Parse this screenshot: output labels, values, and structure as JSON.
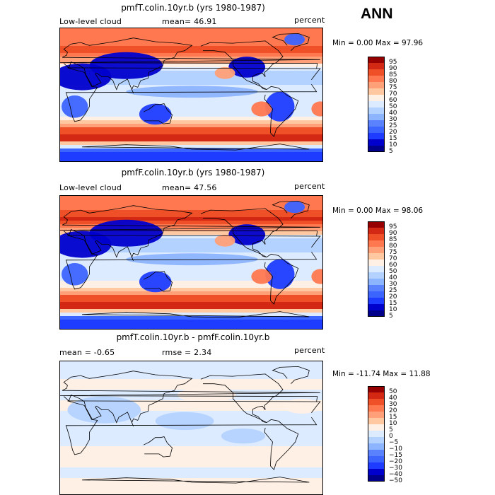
{
  "season": "ANN",
  "panels": [
    {
      "title": "pmfT.colin.10yr.b (yrs 1980-1987)",
      "left_label": "Low-level cloud",
      "stat_text": "mean=  46.91",
      "units": "percent",
      "minmax_text": "Min =   0.00 Max =  97.96",
      "colorbar_ticks": [
        "95",
        "90",
        "85",
        "80",
        "75",
        "70",
        "60",
        "50",
        "40",
        "30",
        "25",
        "20",
        "15",
        "10",
        "5"
      ]
    },
    {
      "title": "pmfF.colin.10yr.b (yrs 1980-1987)",
      "left_label": "Low-level cloud",
      "stat_text": "mean=  47.56",
      "units": "percent",
      "minmax_text": "Min =   0.00 Max =  98.06",
      "colorbar_ticks": [
        "95",
        "90",
        "85",
        "80",
        "75",
        "70",
        "60",
        "50",
        "40",
        "30",
        "25",
        "20",
        "15",
        "10",
        "5"
      ]
    },
    {
      "title": "pmfT.colin.10yr.b - pmfF.colin.10yr.b",
      "left_label": "mean =  -0.65",
      "stat_text": "rmse =   2.34",
      "units": "percent",
      "minmax_text": "Min = -11.74 Max =  11.88",
      "colorbar_ticks": [
        "50",
        "40",
        "30",
        "20",
        "15",
        "10",
        "5",
        "0",
        "−5",
        "−10",
        "−15",
        "−20",
        "−30",
        "−40",
        "−50"
      ]
    }
  ],
  "chart_data": [
    {
      "type": "heatmap",
      "title": "pmfT.colin.10yr.b (yrs 1980-1987)",
      "variable": "Low-level cloud",
      "units": "percent",
      "mean": 46.91,
      "min": 0.0,
      "max": 97.96,
      "levels": [
        5,
        10,
        15,
        20,
        25,
        30,
        40,
        50,
        60,
        70,
        75,
        80,
        85,
        90,
        95
      ],
      "zonal_profile": [
        {
          "lat": 75,
          "value": 75
        },
        {
          "lat": 60,
          "value": 85
        },
        {
          "lat": 45,
          "value": 70
        },
        {
          "lat": 30,
          "value": 35
        },
        {
          "lat": 15,
          "value": 40
        },
        {
          "lat": 0,
          "value": 45
        },
        {
          "lat": -15,
          "value": 45
        },
        {
          "lat": -30,
          "value": 50
        },
        {
          "lat": -45,
          "value": 80
        },
        {
          "lat": -60,
          "value": 90
        },
        {
          "lat": -75,
          "value": 10
        }
      ]
    },
    {
      "type": "heatmap",
      "title": "pmfF.colin.10yr.b (yrs 1980-1987)",
      "variable": "Low-level cloud",
      "units": "percent",
      "mean": 47.56,
      "min": 0.0,
      "max": 98.06,
      "levels": [
        5,
        10,
        15,
        20,
        25,
        30,
        40,
        50,
        60,
        70,
        75,
        80,
        85,
        90,
        95
      ],
      "zonal_profile": [
        {
          "lat": 75,
          "value": 78
        },
        {
          "lat": 60,
          "value": 87
        },
        {
          "lat": 45,
          "value": 72
        },
        {
          "lat": 30,
          "value": 34
        },
        {
          "lat": 15,
          "value": 40
        },
        {
          "lat": 0,
          "value": 46
        },
        {
          "lat": -15,
          "value": 47
        },
        {
          "lat": -30,
          "value": 52
        },
        {
          "lat": -45,
          "value": 82
        },
        {
          "lat": -60,
          "value": 90
        },
        {
          "lat": -75,
          "value": 10
        }
      ]
    },
    {
      "type": "heatmap",
      "title": "pmfT.colin.10yr.b - pmfF.colin.10yr.b",
      "units": "percent",
      "mean": -0.65,
      "rmse": 2.34,
      "min": -11.74,
      "max": 11.88,
      "levels": [
        -50,
        -40,
        -30,
        -20,
        -15,
        -10,
        -5,
        0,
        5,
        10,
        15,
        20,
        30,
        40,
        50
      ],
      "zonal_profile": [
        {
          "lat": 75,
          "value": -2
        },
        {
          "lat": 60,
          "value": 1
        },
        {
          "lat": 45,
          "value": -1
        },
        {
          "lat": 30,
          "value": 1
        },
        {
          "lat": 15,
          "value": -2
        },
        {
          "lat": 0,
          "value": -2
        },
        {
          "lat": -15,
          "value": -1
        },
        {
          "lat": -30,
          "value": 1
        },
        {
          "lat": -45,
          "value": 1
        },
        {
          "lat": -60,
          "value": -1
        },
        {
          "lat": -75,
          "value": 1
        }
      ]
    }
  ],
  "colors": {
    "abs_scale": [
      "#00008b",
      "#0000cd",
      "#1e3cff",
      "#3c64ff",
      "#5a82ff",
      "#8cb4ff",
      "#b4d2ff",
      "#dcebff",
      "#fff0e6",
      "#ffc8a0",
      "#ffa078",
      "#ff7850",
      "#f05028",
      "#d22814",
      "#960000"
    ],
    "diff_scale": [
      "#00008b",
      "#0000cd",
      "#1e3cff",
      "#3c64ff",
      "#5a82ff",
      "#8cb4ff",
      "#b4d2ff",
      "#dcebff",
      "#fff0e6",
      "#ffc8a0",
      "#ffa078",
      "#ff7850",
      "#f05028",
      "#d22814",
      "#960000"
    ]
  }
}
